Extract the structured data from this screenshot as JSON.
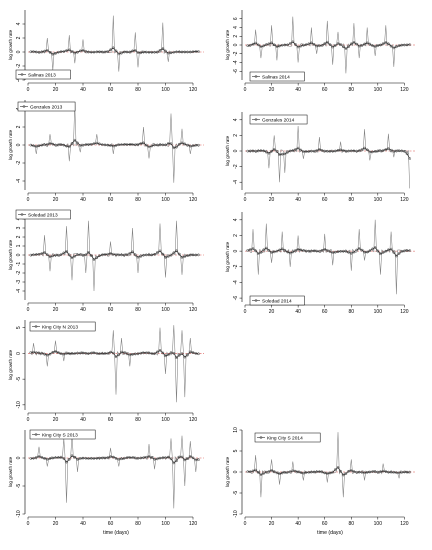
{
  "chart_data": [
    {
      "type": "line",
      "legend": "Salinas 2013",
      "ylabel": "log growth rate",
      "xlabel": "",
      "xlim": [
        0,
        128
      ],
      "ylim": [
        -4,
        6
      ],
      "xticks": [
        0,
        20,
        40,
        60,
        80,
        100,
        120
      ],
      "yticks": [
        -4,
        -2,
        0,
        2,
        4
      ],
      "ytick_labels": [
        "-4",
        "-2",
        "0",
        "2",
        "4"
      ],
      "spikes": [
        [
          14,
          2.0
        ],
        [
          18,
          -2.6
        ],
        [
          30,
          2.4
        ],
        [
          34,
          -1.6
        ],
        [
          40,
          1.8
        ],
        [
          62,
          5.2
        ],
        [
          66,
          -2.8
        ],
        [
          78,
          2.8
        ],
        [
          80,
          -2.2
        ],
        [
          98,
          4.2
        ],
        [
          102,
          -1.4
        ]
      ]
    },
    {
      "type": "line",
      "legend": "Salinas 2014",
      "ylabel": "log growth rate",
      "xlabel": "",
      "xlim": [
        0,
        128
      ],
      "ylim": [
        -8,
        8
      ],
      "xticks": [
        0,
        20,
        40,
        60,
        80,
        100,
        120
      ],
      "yticks": [
        -6,
        -4,
        -2,
        0,
        2,
        4,
        6
      ],
      "ytick_labels": [
        "-6",
        "-4",
        "-2",
        "0",
        "2",
        "4",
        "6"
      ],
      "spikes": [
        [
          8,
          3.5
        ],
        [
          12,
          -3.0
        ],
        [
          20,
          4.5
        ],
        [
          24,
          -3.5
        ],
        [
          36,
          6.5
        ],
        [
          40,
          -4.0
        ],
        [
          50,
          4.0
        ],
        [
          54,
          -2.0
        ],
        [
          62,
          5.5
        ],
        [
          66,
          -4.5
        ],
        [
          70,
          3.0
        ],
        [
          76,
          -6.5
        ],
        [
          82,
          5.0
        ],
        [
          86,
          -3.0
        ],
        [
          92,
          4.0
        ],
        [
          98,
          -2.5
        ],
        [
          106,
          4.5
        ],
        [
          112,
          -5.0
        ]
      ]
    },
    {
      "type": "line",
      "legend": "Gonzales 2013",
      "ylabel": "log growth rate",
      "xlabel": "",
      "xlim": [
        0,
        128
      ],
      "ylim": [
        -5,
        5
      ],
      "xticks": [
        0,
        20,
        40,
        60,
        80,
        100,
        120
      ],
      "yticks": [
        -4,
        -2,
        0,
        2,
        4
      ],
      "ytick_labels": [
        "-4",
        "-2",
        "0",
        "2",
        "4"
      ],
      "spikes": [
        [
          6,
          -1.0
        ],
        [
          16,
          1.2
        ],
        [
          30,
          -1.8
        ],
        [
          34,
          4.5
        ],
        [
          38,
          -0.8
        ],
        [
          50,
          1.2
        ],
        [
          62,
          -1.0
        ],
        [
          84,
          2.0
        ],
        [
          88,
          -1.5
        ],
        [
          104,
          3.5
        ],
        [
          106,
          -4.2
        ],
        [
          112,
          1.8
        ],
        [
          118,
          -1.0
        ]
      ]
    },
    {
      "type": "line",
      "legend": "Gonzales 2014",
      "ylabel": "log growth rate",
      "xlabel": "",
      "xlim": [
        0,
        128
      ],
      "ylim": [
        -5,
        5
      ],
      "xticks": [
        0,
        20,
        40,
        60,
        80,
        100,
        120
      ],
      "yticks": [
        -4,
        -2,
        0,
        2,
        4
      ],
      "ytick_labels": [
        "-4",
        "-2",
        "0",
        "2",
        "4"
      ],
      "spikes": [
        [
          18,
          -2.2
        ],
        [
          22,
          2.0
        ],
        [
          26,
          -4.0
        ],
        [
          30,
          -2.8
        ],
        [
          40,
          3.2
        ],
        [
          44,
          -1.0
        ],
        [
          56,
          1.8
        ],
        [
          72,
          1.2
        ],
        [
          90,
          2.8
        ],
        [
          94,
          -1.2
        ],
        [
          108,
          2.2
        ],
        [
          112,
          -0.8
        ],
        [
          124,
          -4.8
        ]
      ]
    },
    {
      "type": "line",
      "legend": "Soledad 2013",
      "ylabel": "log growth rate",
      "xlabel": "",
      "xlim": [
        0,
        128
      ],
      "ylim": [
        -5,
        5
      ],
      "xticks": [
        0,
        20,
        40,
        60,
        80,
        100,
        120
      ],
      "yticks": [
        -4,
        -3,
        -2,
        -1,
        0,
        1,
        2,
        3,
        4
      ],
      "ytick_labels": [
        "-4",
        "-3",
        "-2",
        "-1",
        "0",
        "1",
        "2",
        "3",
        "4"
      ],
      "spikes": [
        [
          12,
          2.2
        ],
        [
          16,
          -1.8
        ],
        [
          28,
          3.2
        ],
        [
          32,
          -2.8
        ],
        [
          42,
          -2.0
        ],
        [
          44,
          3.8
        ],
        [
          48,
          -4.0
        ],
        [
          60,
          1.5
        ],
        [
          76,
          3.0
        ],
        [
          80,
          -2.0
        ],
        [
          96,
          3.5
        ],
        [
          100,
          -2.5
        ],
        [
          108,
          3.8
        ],
        [
          112,
          -2.2
        ]
      ]
    },
    {
      "type": "line",
      "legend": "Soledad 2014",
      "ylabel": "log growth rate",
      "xlabel": "",
      "xlim": [
        0,
        128
      ],
      "ylim": [
        -6.5,
        5
      ],
      "xticks": [
        0,
        20,
        40,
        60,
        80,
        100,
        120
      ],
      "yticks": [
        -6,
        -4,
        -2,
        0,
        2,
        4
      ],
      "ytick_labels": [
        "-6",
        "-4",
        "-2",
        "0",
        "2",
        "4"
      ],
      "spikes": [
        [
          6,
          2.8
        ],
        [
          10,
          -3.0
        ],
        [
          16,
          3.5
        ],
        [
          20,
          -1.5
        ],
        [
          28,
          2.5
        ],
        [
          34,
          -2.0
        ],
        [
          40,
          2.0
        ],
        [
          60,
          2.2
        ],
        [
          66,
          -1.8
        ],
        [
          80,
          -2.5
        ],
        [
          86,
          2.8
        ],
        [
          90,
          -1.2
        ],
        [
          98,
          4.0
        ],
        [
          102,
          -3.0
        ],
        [
          110,
          2.5
        ],
        [
          114,
          -5.5
        ]
      ]
    },
    {
      "type": "line",
      "legend": "King City N 2013",
      "ylabel": "log growth rate",
      "xlabel": "",
      "xlim": [
        0,
        128
      ],
      "ylim": [
        -11,
        6.5
      ],
      "xticks": [
        0,
        20,
        40,
        60,
        80,
        100,
        120
      ],
      "yticks": [
        -10,
        -5,
        0,
        5
      ],
      "ytick_labels": [
        "-10",
        "-5",
        "0",
        "5"
      ],
      "spikes": [
        [
          4,
          2.0
        ],
        [
          14,
          -2.5
        ],
        [
          20,
          2.5
        ],
        [
          26,
          -1.5
        ],
        [
          62,
          4.5
        ],
        [
          64,
          -8.0
        ],
        [
          68,
          3.0
        ],
        [
          74,
          -2.5
        ],
        [
          96,
          5.0
        ],
        [
          100,
          -4.0
        ],
        [
          106,
          5.5
        ],
        [
          108,
          -9.5
        ],
        [
          112,
          4.5
        ],
        [
          114,
          -8.5
        ],
        [
          118,
          3.0
        ]
      ]
    },
    {
      "type": "line",
      "legend": "King City S 2013",
      "ylabel": "log growth rate",
      "xlabel": "time (days)",
      "xlim": [
        0,
        128
      ],
      "ylim": [
        -10,
        5
      ],
      "xticks": [
        0,
        20,
        40,
        60,
        80,
        100,
        120
      ],
      "yticks": [
        -10,
        -5,
        0
      ],
      "ytick_labels": [
        "-10",
        "-5",
        "0"
      ],
      "spikes": [
        [
          8,
          2.0
        ],
        [
          14,
          -1.5
        ],
        [
          26,
          3.5
        ],
        [
          28,
          -8.0
        ],
        [
          32,
          4.0
        ],
        [
          36,
          -2.5
        ],
        [
          60,
          1.8
        ],
        [
          66,
          -1.5
        ],
        [
          88,
          2.5
        ],
        [
          92,
          -2.0
        ],
        [
          104,
          3.5
        ],
        [
          106,
          -9.0
        ],
        [
          112,
          4.0
        ],
        [
          114,
          -5.0
        ],
        [
          118,
          3.0
        ],
        [
          122,
          -2.5
        ]
      ]
    },
    {
      "type": "line",
      "legend": "King City S 2014",
      "ylabel": "log growth rate",
      "xlabel": "time (days)",
      "xlim": [
        0,
        128
      ],
      "ylim": [
        -10,
        10
      ],
      "xticks": [
        0,
        20,
        40,
        60,
        80,
        100,
        120
      ],
      "yticks": [
        -10,
        -5,
        0,
        5,
        10
      ],
      "ytick_labels": [
        "-10",
        "-5",
        "0",
        "5",
        "10"
      ],
      "spikes": [
        [
          8,
          4.0
        ],
        [
          12,
          -6.0
        ],
        [
          20,
          3.0
        ],
        [
          26,
          -3.0
        ],
        [
          36,
          2.5
        ],
        [
          44,
          -2.0
        ],
        [
          62,
          -2.5
        ],
        [
          70,
          9.5
        ],
        [
          74,
          -6.0
        ],
        [
          80,
          3.0
        ],
        [
          90,
          -2.0
        ],
        [
          104,
          2.0
        ],
        [
          116,
          -1.5
        ]
      ]
    }
  ]
}
